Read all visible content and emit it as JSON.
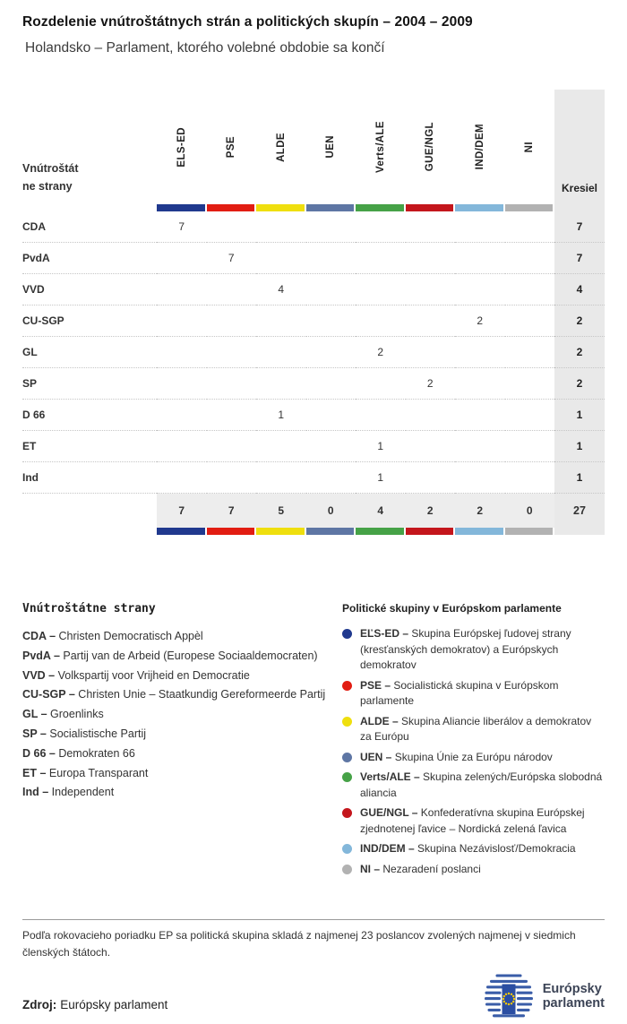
{
  "header": {
    "title": "Rozdelenie vnútroštátnych strán a politických skupín – 2004 – 2009",
    "subtitle": "Holandsko – Parlament, ktorého volebné obdobie sa končí"
  },
  "chart_data": {
    "type": "table",
    "title": "Rozdelenie vnútroštátnych strán a politických skupín – 2004 – 2009",
    "subtitle": "Holandsko – Parlament, ktorého volebné obdobie sa končí",
    "row_header": "Vnútroštátne strany",
    "seats_header": "Kresiel",
    "groups": [
      {
        "code": "ELS-ED",
        "color": "#20398e"
      },
      {
        "code": "PSE",
        "color": "#e21d12"
      },
      {
        "code": "ALDE",
        "color": "#efdf0e"
      },
      {
        "code": "UEN",
        "color": "#5e76a4"
      },
      {
        "code": "Verts/ALE",
        "color": "#46a247"
      },
      {
        "code": "GUE/NGL",
        "color": "#c4161c"
      },
      {
        "code": "IND/DEM",
        "color": "#83b7da"
      },
      {
        "code": "NI",
        "color": "#b2b2b2"
      }
    ],
    "rows": [
      {
        "party": "CDA",
        "values": [
          7,
          null,
          null,
          null,
          null,
          null,
          null,
          null
        ],
        "seats": 7
      },
      {
        "party": "PvdA",
        "values": [
          null,
          7,
          null,
          null,
          null,
          null,
          null,
          null
        ],
        "seats": 7
      },
      {
        "party": "VVD",
        "values": [
          null,
          null,
          4,
          null,
          null,
          null,
          null,
          null
        ],
        "seats": 4
      },
      {
        "party": "CU-SGP",
        "values": [
          null,
          null,
          null,
          null,
          null,
          null,
          2,
          null
        ],
        "seats": 2
      },
      {
        "party": "GL",
        "values": [
          null,
          null,
          null,
          null,
          2,
          null,
          null,
          null
        ],
        "seats": 2
      },
      {
        "party": "SP",
        "values": [
          null,
          null,
          null,
          null,
          null,
          2,
          null,
          null
        ],
        "seats": 2
      },
      {
        "party": "D 66",
        "values": [
          null,
          null,
          1,
          null,
          null,
          null,
          null,
          null
        ],
        "seats": 1
      },
      {
        "party": "ET",
        "values": [
          null,
          null,
          null,
          null,
          1,
          null,
          null,
          null
        ],
        "seats": 1
      },
      {
        "party": "Ind",
        "values": [
          null,
          null,
          null,
          null,
          1,
          null,
          null,
          null
        ],
        "seats": 1
      }
    ],
    "totals": [
      7,
      7,
      5,
      0,
      4,
      2,
      2,
      0
    ],
    "total_seats": 27
  },
  "legend_parties": {
    "title": "Vnútroštátne strany",
    "items": [
      {
        "code": "CDA",
        "name": "Christen Democratisch Appèl"
      },
      {
        "code": "PvdA",
        "name": "Partij van de Arbeid (Europese Sociaaldemocraten)"
      },
      {
        "code": "VVD",
        "name": "Volkspartij voor Vrijheid en Democratie"
      },
      {
        "code": "CU-SGP",
        "name": "Christen Unie – Staatkundig Gereformeerde Partij"
      },
      {
        "code": "GL",
        "name": "Groenlinks"
      },
      {
        "code": "SP",
        "name": "Socialistische Partij"
      },
      {
        "code": "D 66",
        "name": "Demokraten 66"
      },
      {
        "code": "ET",
        "name": "Europa Transparant"
      },
      {
        "code": "Ind",
        "name": "Independent"
      }
    ]
  },
  "legend_groups": {
    "title": "Politické skupiny v Európskom parlamente",
    "items": [
      {
        "code": "EĽS-ED",
        "color": "#20398e",
        "name": "Skupina Európskej ľudovej strany (kresťanských demokratov) a Európskych demokratov"
      },
      {
        "code": "PSE",
        "color": "#e21d12",
        "name": "Socialistická skupina v Európskom parlamente"
      },
      {
        "code": "ALDE",
        "color": "#efdf0e",
        "name": "Skupina Aliancie liberálov a demokratov za Európu"
      },
      {
        "code": "UEN",
        "color": "#5e76a4",
        "name": "Skupina Únie za Európu národov"
      },
      {
        "code": "Verts/ALE",
        "color": "#46a247",
        "name": "Skupina zelených/Európska slobodná aliancia"
      },
      {
        "code": "GUE/NGL",
        "color": "#c4161c",
        "name": "Konfederatívna skupina Európskej zjednotenej ľavice – Nordická zelená ľavica"
      },
      {
        "code": "IND/DEM",
        "color": "#83b7da",
        "name": "Skupina Nezávislosť/Demokracia"
      },
      {
        "code": "NI",
        "color": "#b2b2b2",
        "name": "Nezaradení poslanci"
      }
    ]
  },
  "footer": {
    "note": "Podľa rokovacieho poriadku EP sa politická skupina skladá z najmenej 23 poslancov zvolených najmenej v siedmich členských štátoch.",
    "source_label": "Zdroj:",
    "source_value": "Európsky parlament",
    "logo_line1": "Európsky",
    "logo_line2": "parlament"
  }
}
